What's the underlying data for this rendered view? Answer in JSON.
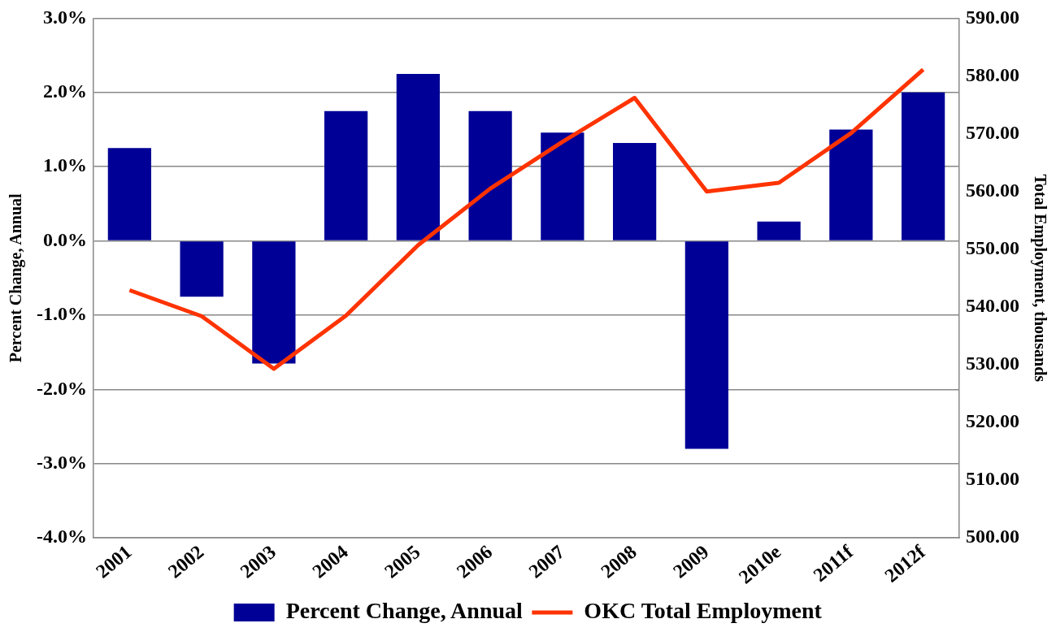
{
  "chart_data": {
    "type": "bar",
    "ylabel": "Percent Change, Annual",
    "y2label": "Total Employment, thousands",
    "categories": [
      "2001",
      "2002",
      "2003",
      "2004",
      "2005",
      "2006",
      "2007",
      "2008",
      "2009",
      "2010e",
      "2011f",
      "2012f"
    ],
    "series": [
      {
        "name": "Percent Change, Annual",
        "color": "#000096",
        "values": [
          1.25,
          -0.75,
          -1.65,
          1.75,
          2.25,
          1.75,
          1.46,
          1.32,
          -2.8,
          0.26,
          1.5,
          2.0
        ]
      },
      {
        "name": "OKC Total Employment",
        "type": "line",
        "axis": "y2",
        "color": "#ff3300",
        "values": [
          542.9,
          538.4,
          529.3,
          538.5,
          550.7,
          560.5,
          568.6,
          576.2,
          560.0,
          561.5,
          570.1,
          581.1
        ]
      }
    ],
    "ylim": [
      -4,
      3
    ],
    "yticks": [
      {
        "value": -4,
        "label": "-4.0%"
      },
      {
        "value": -3,
        "label": "-3.0%"
      },
      {
        "value": -2,
        "label": "-2.0%"
      },
      {
        "value": -1,
        "label": "-1.0%"
      },
      {
        "value": 0,
        "label": "0.0%"
      },
      {
        "value": 1,
        "label": "1.0%"
      },
      {
        "value": 2,
        "label": "2.0%"
      },
      {
        "value": 3,
        "label": "3.0%"
      }
    ],
    "y2lim": [
      500,
      590
    ],
    "y2ticks": [
      {
        "value": 500,
        "label": "500.00"
      },
      {
        "value": 510,
        "label": "510.00"
      },
      {
        "value": 520,
        "label": "520.00"
      },
      {
        "value": 530,
        "label": "530.00"
      },
      {
        "value": 540,
        "label": "540.00"
      },
      {
        "value": 550,
        "label": "550.00"
      },
      {
        "value": 560,
        "label": "560.00"
      },
      {
        "value": 570,
        "label": "570.00"
      },
      {
        "value": 580,
        "label": "580.00"
      },
      {
        "value": 590,
        "label": "590.00"
      }
    ],
    "grid": "y",
    "legend": "bottom",
    "marker": "none"
  }
}
